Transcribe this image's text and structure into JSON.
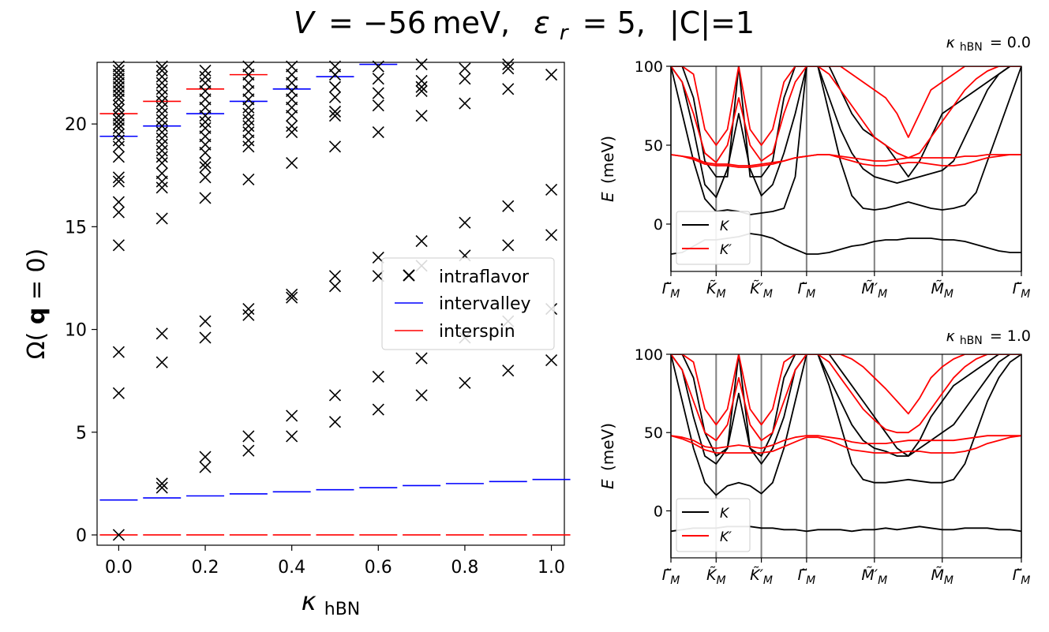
{
  "chart_data": [
    {
      "type": "scatter",
      "title": "V = −56 meV,  ε_r = 5,  |C|=1",
      "title_parts": {
        "v": "V",
        "v_val": "= −56 meV,",
        "eps": "ε",
        "eps_sub": "r",
        "eps_val": "= 5,",
        "c": "|C|=1"
      },
      "xlabel": "κ",
      "xlabel_sub": "hBN",
      "ylabel": "Ω(q = 0)",
      "ylabel_parts": {
        "pre": "Ω(",
        "bold": "q",
        "post": " = 0)"
      },
      "xlim": [
        -0.05,
        1.03
      ],
      "ylim": [
        -0.5,
        23
      ],
      "xticks": [
        "0.0",
        "0.2",
        "0.4",
        "0.6",
        "0.8",
        "1.0"
      ],
      "xtick_values": [
        0.0,
        0.2,
        0.4,
        0.6,
        0.8,
        1.0
      ],
      "yticks": [
        "0",
        "5",
        "10",
        "15",
        "20"
      ],
      "ytick_values": [
        0,
        5,
        10,
        15,
        20
      ],
      "legend": {
        "position": "center-right",
        "entries": [
          {
            "label": "intraflavor",
            "marker": "x",
            "color": "#000000"
          },
          {
            "label": "intervalley",
            "marker": "line",
            "color": "#0000ff"
          },
          {
            "label": "interspin",
            "marker": "line",
            "color": "#ff0000"
          }
        ]
      },
      "series": [
        {
          "name": "intraflavor",
          "kappa": [
            0.0,
            0.1,
            0.2,
            0.3,
            0.4,
            0.5,
            0.6,
            0.7,
            0.8,
            0.9,
            1.0
          ],
          "values": [
            [
              0,
              6.9,
              8.9,
              14.1,
              15.7,
              16.2,
              17.2,
              17.4,
              18.4,
              18.9,
              19.2,
              19.5,
              19.8,
              20.0,
              20.2,
              20.4,
              20.7,
              20.9,
              21.2,
              21.4,
              21.6,
              21.8,
              22.0,
              22.2,
              22.4,
              22.6,
              22.8
            ],
            [
              2.3,
              2.5,
              8.4,
              9.8,
              15.4,
              16.9,
              17.2,
              17.6,
              18.1,
              18.4,
              18.7,
              19.0,
              19.3,
              19.6,
              19.9,
              20.2,
              20.5,
              20.8,
              21.1,
              21.4,
              21.7,
              22.0,
              22.3,
              22.6,
              22.8
            ],
            [
              3.3,
              3.8,
              9.6,
              10.4,
              16.4,
              17.4,
              17.9,
              18.1,
              18.6,
              19.0,
              19.4,
              19.8,
              20.1,
              20.4,
              20.8,
              21.2,
              21.6,
              22.0,
              22.3,
              22.6
            ],
            [
              4.1,
              4.8,
              10.7,
              11.0,
              17.3,
              18.9,
              19.2,
              19.6,
              19.9,
              20.2,
              20.5,
              20.8,
              21.2,
              21.6,
              22.0,
              22.4,
              22.8
            ],
            [
              4.8,
              5.8,
              11.55,
              11.7,
              18.1,
              19.6,
              19.9,
              20.4,
              20.8,
              21.2,
              21.6,
              22.0,
              22.4,
              22.8
            ],
            [
              5.5,
              6.8,
              12.1,
              12.6,
              18.9,
              20.4,
              20.6,
              21.3,
              21.8,
              22.4,
              22.8
            ],
            [
              6.1,
              7.7,
              12.6,
              13.5,
              19.6,
              20.9,
              21.5,
              22.2,
              22.8
            ],
            [
              6.8,
              8.6,
              13.1,
              14.3,
              20.4,
              21.6,
              21.8,
              22.1,
              22.9
            ],
            [
              7.4,
              9.6,
              13.6,
              15.2,
              21.0,
              22.2,
              22.7
            ],
            [
              8.0,
              10.4,
              14.1,
              16.0,
              21.7,
              22.7,
              22.9
            ],
            [
              8.5,
              11.0,
              14.6,
              16.8,
              22.4
            ]
          ]
        },
        {
          "name": "intervalley",
          "kappa": [
            0.0,
            0.1,
            0.2,
            0.3,
            0.4,
            0.5,
            0.6,
            0.7,
            0.8,
            0.9,
            1.0
          ],
          "values": [
            1.7,
            1.8,
            1.9,
            2.0,
            2.1,
            2.2,
            2.3,
            2.4,
            2.5,
            2.6,
            2.7
          ],
          "upper_values": [
            19.4,
            19.9,
            20.5,
            21.1,
            21.7,
            22.3,
            22.9,
            null,
            null,
            null,
            null
          ]
        },
        {
          "name": "interspin",
          "kappa": [
            0.0,
            0.1,
            0.2,
            0.3,
            0.4,
            0.5,
            0.6,
            0.7,
            0.8,
            0.9,
            1.0
          ],
          "values": [
            0,
            0,
            0,
            0,
            0,
            0,
            0,
            0,
            0,
            0,
            0
          ],
          "upper_values": [
            20.5,
            21.1,
            21.7,
            22.4,
            null,
            null,
            null,
            null,
            null,
            null,
            null
          ]
        }
      ]
    },
    {
      "type": "line",
      "title": "κ_hBN = 0.0",
      "title_parts": {
        "k": "κ",
        "sub": "hBN",
        "val": "= 0.0"
      },
      "ylabel": "E (meV)",
      "ylabel_parts": {
        "e": "E",
        "unit": "(meV)"
      },
      "ylim": [
        -30,
        100
      ],
      "yticks": [
        "0",
        "50",
        "100"
      ],
      "ytick_values": [
        0,
        50,
        100
      ],
      "xticks": [
        "Γ̃",
        "K̃",
        "K̃′",
        "Γ̃",
        "M̃′",
        "M̃",
        "Γ̃"
      ],
      "xtick_sub": "M",
      "xtick_values": [
        0,
        1,
        2,
        3,
        4.5,
        6,
        7.75
      ],
      "legend": {
        "position": "lower-left",
        "entries": [
          {
            "label": "K",
            "color": "#000000"
          },
          {
            "label": "K′",
            "color": "#ff0000"
          }
        ]
      },
      "x": [
        0,
        0.25,
        0.5,
        0.75,
        1,
        1.25,
        1.5,
        1.75,
        2,
        2.25,
        2.5,
        2.75,
        3,
        3.25,
        3.5,
        3.75,
        4,
        4.25,
        4.5,
        4.75,
        5,
        5.25,
        5.5,
        5.75,
        6,
        6.25,
        6.5,
        6.75,
        7,
        7.25,
        7.5,
        7.75
      ],
      "series": [
        {
          "name": "K",
          "values": [
            -19,
            -18,
            -14,
            -10,
            -10,
            -9,
            -8,
            -6,
            -7,
            -9,
            -13,
            -16,
            -19,
            -19,
            -18,
            -16,
            -14,
            -13,
            -11,
            -10,
            -10,
            -9,
            -9,
            -9,
            -10,
            -10,
            -11,
            -13,
            -15,
            -17,
            -18,
            -18
          ]
        },
        {
          "name": "K",
          "values": [
            100,
            70,
            40,
            16,
            8,
            9,
            8,
            6,
            7,
            8,
            10,
            30,
            100,
            100,
            70,
            40,
            18,
            10,
            9,
            10,
            12,
            14,
            12,
            10,
            9,
            10,
            12,
            20,
            40,
            60,
            80,
            100
          ]
        },
        {
          "name": "K",
          "values": [
            100,
            90,
            60,
            25,
            17,
            35,
            70,
            35,
            18,
            25,
            45,
            70,
            100,
            100,
            80,
            60,
            45,
            35,
            30,
            28,
            26,
            28,
            30,
            32,
            34,
            40,
            55,
            70,
            85,
            95,
            100,
            100
          ]
        },
        {
          "name": "K",
          "values": [
            100,
            100,
            80,
            40,
            30,
            30,
            100,
            30,
            30,
            40,
            80,
            100,
            100,
            100,
            100,
            85,
            70,
            60,
            55,
            50,
            40,
            30,
            40,
            55,
            70,
            75,
            80,
            85,
            90,
            95,
            100,
            100
          ]
        },
        {
          "name": "K′",
          "values": [
            44,
            43,
            42,
            39,
            38,
            38,
            37,
            37,
            38,
            39,
            40,
            42,
            43,
            44,
            44,
            43,
            42,
            41,
            40,
            40,
            41,
            42,
            42,
            42,
            42,
            42,
            43,
            43,
            44,
            44,
            44,
            44
          ]
        },
        {
          "name": "K′",
          "values": [
            44,
            43,
            41,
            38,
            37,
            37,
            36,
            36,
            37,
            38,
            40,
            42,
            43,
            44,
            44,
            42,
            40,
            38,
            37,
            37,
            38,
            39,
            39,
            38,
            37,
            37,
            38,
            40,
            42,
            43,
            44,
            44
          ]
        },
        {
          "name": "K′",
          "values": [
            100,
            90,
            70,
            45,
            39,
            50,
            80,
            50,
            40,
            45,
            70,
            90,
            100,
            100,
            95,
            85,
            75,
            65,
            55,
            50,
            45,
            42,
            45,
            55,
            65,
            75,
            85,
            92,
            97,
            100,
            100,
            100
          ]
        },
        {
          "name": "K′",
          "values": [
            100,
            100,
            95,
            60,
            50,
            60,
            100,
            60,
            50,
            60,
            90,
            100,
            100,
            100,
            100,
            100,
            95,
            90,
            85,
            80,
            70,
            55,
            70,
            85,
            90,
            95,
            100,
            100,
            100,
            100,
            100,
            100
          ]
        }
      ]
    },
    {
      "type": "line",
      "title": "κ_hBN = 1.0",
      "title_parts": {
        "k": "κ",
        "sub": "hBN",
        "val": "= 1.0"
      },
      "ylabel": "E (meV)",
      "ylabel_parts": {
        "e": "E",
        "unit": "(meV)"
      },
      "ylim": [
        -30,
        100
      ],
      "yticks": [
        "0",
        "50",
        "100"
      ],
      "ytick_values": [
        0,
        50,
        100
      ],
      "xticks": [
        "Γ̃",
        "K̃",
        "K̃′",
        "Γ̃",
        "M̃′",
        "M̃",
        "Γ̃"
      ],
      "xtick_sub": "M",
      "xtick_values": [
        0,
        1,
        2,
        3,
        4.5,
        6,
        7.75
      ],
      "legend": {
        "position": "lower-left",
        "entries": [
          {
            "label": "K",
            "color": "#000000"
          },
          {
            "label": "K′",
            "color": "#ff0000"
          }
        ]
      },
      "x": [
        0,
        0.25,
        0.5,
        0.75,
        1,
        1.25,
        1.5,
        1.75,
        2,
        2.25,
        2.5,
        2.75,
        3,
        3.25,
        3.5,
        3.75,
        4,
        4.25,
        4.5,
        4.75,
        5,
        5.25,
        5.5,
        5.75,
        6,
        6.25,
        6.5,
        6.75,
        7,
        7.25,
        7.5,
        7.75
      ],
      "series": [
        {
          "name": "K",
          "values": [
            -13,
            -12,
            -11,
            -11,
            -11,
            -10,
            -10,
            -10,
            -11,
            -11,
            -12,
            -12,
            -13,
            -12,
            -12,
            -12,
            -13,
            -12,
            -12,
            -11,
            -12,
            -11,
            -10,
            -11,
            -12,
            -12,
            -11,
            -11,
            -11,
            -12,
            -12,
            -13
          ]
        },
        {
          "name": "K",
          "values": [
            100,
            70,
            40,
            18,
            10,
            16,
            18,
            16,
            11,
            18,
            40,
            70,
            100,
            100,
            80,
            55,
            30,
            20,
            18,
            18,
            19,
            20,
            19,
            18,
            18,
            20,
            30,
            50,
            70,
            85,
            95,
            100
          ]
        },
        {
          "name": "K",
          "values": [
            100,
            90,
            60,
            35,
            30,
            40,
            75,
            40,
            30,
            40,
            60,
            90,
            100,
            100,
            85,
            70,
            55,
            45,
            40,
            38,
            35,
            35,
            40,
            45,
            50,
            55,
            65,
            75,
            85,
            95,
            100,
            100
          ]
        },
        {
          "name": "K",
          "values": [
            100,
            100,
            85,
            50,
            35,
            40,
            100,
            40,
            35,
            50,
            85,
            100,
            100,
            100,
            100,
            90,
            80,
            70,
            60,
            50,
            40,
            35,
            45,
            60,
            70,
            80,
            85,
            90,
            95,
            100,
            100,
            100
          ]
        },
        {
          "name": "K′",
          "values": [
            48,
            47,
            45,
            41,
            40,
            41,
            42,
            41,
            40,
            42,
            45,
            47,
            48,
            48,
            47,
            46,
            44,
            43,
            43,
            43,
            44,
            45,
            45,
            45,
            45,
            45,
            46,
            47,
            48,
            48,
            48,
            48
          ]
        },
        {
          "name": "K′",
          "values": [
            48,
            46,
            43,
            39,
            37,
            37,
            37,
            37,
            37,
            38,
            41,
            44,
            47,
            47,
            45,
            42,
            39,
            38,
            37,
            37,
            37,
            38,
            38,
            37,
            37,
            37,
            38,
            40,
            43,
            45,
            47,
            48
          ]
        },
        {
          "name": "K′",
          "values": [
            100,
            90,
            70,
            50,
            45,
            55,
            85,
            55,
            45,
            50,
            70,
            90,
            100,
            100,
            95,
            85,
            75,
            65,
            58,
            52,
            50,
            50,
            55,
            65,
            75,
            85,
            92,
            97,
            100,
            100,
            100,
            100
          ]
        },
        {
          "name": "K′",
          "values": [
            100,
            100,
            95,
            65,
            55,
            65,
            100,
            65,
            55,
            65,
            95,
            100,
            100,
            100,
            100,
            100,
            97,
            92,
            85,
            78,
            70,
            62,
            72,
            85,
            92,
            97,
            100,
            100,
            100,
            100,
            100,
            100
          ]
        }
      ]
    }
  ]
}
